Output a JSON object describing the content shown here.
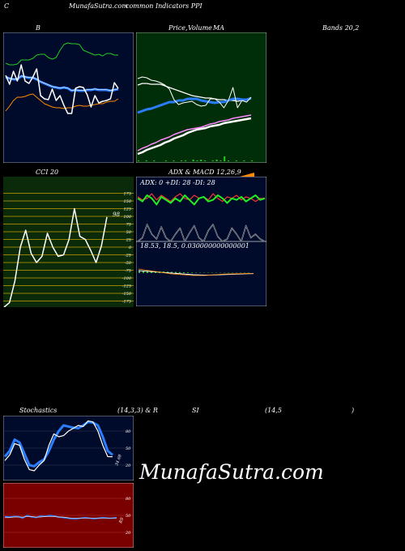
{
  "header": {
    "left_letter": "C",
    "site_title": "MunafaSutra.com",
    "subtitle": "common Indicators PPI"
  },
  "panel_titles": {
    "b": "B",
    "price": "Price,",
    "volume": "Volume",
    "ma": "MA",
    "bands": "Bands 20,2",
    "cci": "CCI 20",
    "adx_macd": "ADX & MACD 12,26,9",
    "adx_readout": "ADX: 0  +DI: 28  -DI: 28",
    "macd_readout": "18.53,  18.5,  0.030000000000001",
    "stoch_a": "Stochastics",
    "stoch_b": "(14,3,3) & R",
    "rsi_a": "SI",
    "rsi_b": "(14,5",
    "rsi_c": ")"
  },
  "cci_last_label": "98",
  "stoch_last_label": "34.68",
  "rsi_last_label": "RS",
  "watermark": "MunafaSutra.com",
  "colors": {
    "bands_bg": "#000a2a",
    "price_bg": "#002e08",
    "cci_bg": "#0a2a0a",
    "cci_grid": "#c8a000",
    "rsi_bg": "#7a0000",
    "upper_band": "#22cc22",
    "lower_band": "#ff8c00",
    "mid_band": "#2a7dff",
    "pink_ma": "#ff88ff",
    "adx_plus": "#22ee22",
    "adx_minus": "#ff3333"
  },
  "chart_data": [
    {
      "type": "line",
      "title": "B ... Bands 20,2",
      "series": [
        {
          "values": [
            78,
            80,
            80,
            79,
            74,
            74,
            74,
            72,
            68,
            67,
            67,
            71,
            73,
            71,
            62,
            55,
            53,
            54,
            54,
            55,
            62,
            64,
            66,
            68,
            67,
            69,
            66,
            66,
            68,
            68
          ]
        },
        {
          "values": [
            95,
            97,
            98,
            98,
            94,
            95,
            96,
            96,
            98,
            101,
            103,
            105,
            107,
            108,
            109,
            108,
            109,
            112,
            111,
            112,
            112,
            111,
            111,
            110,
            111,
            111,
            111,
            112,
            111,
            110
          ]
        },
        {
          "values": [
            137,
            131,
            124,
            120,
            120,
            119,
            117,
            116,
            120,
            124,
            128,
            130,
            132,
            133,
            133,
            134,
            133,
            133,
            131,
            130,
            131,
            131,
            130,
            129,
            128,
            128,
            126,
            125,
            125,
            122
          ]
        },
        {
          "values": [
            93,
            104,
            88,
            100,
            80,
            100,
            103,
            95,
            85,
            118,
            122,
            123,
            110,
            124,
            118,
            130,
            140,
            140,
            109,
            107,
            108,
            117,
            132,
            118,
            127,
            125,
            124,
            122,
            102,
            109
          ]
        }
      ]
    },
    {
      "type": "line",
      "title": "Price, Volume MA",
      "series": [
        {
          "values": [
            97,
            95,
            96,
            99,
            100,
            102,
            105,
            110,
            123,
            129,
            127,
            126,
            125,
            129,
            131,
            130,
            122,
            122,
            126,
            133,
            124,
            108,
            133,
            124,
            126,
            120
          ]
        },
        {
          "values": [
            105,
            103,
            103,
            104,
            104,
            104,
            106,
            108,
            110,
            112,
            114,
            116,
            118,
            119,
            120,
            121,
            121,
            122,
            123,
            123,
            124,
            124,
            125,
            124,
            123,
            122
          ]
        },
        {
          "values": [
            139,
            137,
            135,
            134,
            132,
            130,
            128,
            126,
            126,
            124,
            124,
            122,
            122,
            122,
            124,
            125,
            126,
            127,
            126,
            126,
            124,
            122,
            122,
            123,
            123,
            121
          ]
        },
        {
          "values": [
            186,
            183,
            181,
            178,
            176,
            173,
            171,
            169,
            166,
            164,
            162,
            160,
            159,
            158,
            157,
            155,
            153,
            152,
            150,
            149,
            148,
            146,
            145,
            144,
            143,
            142
          ]
        },
        {
          "values": [
            190,
            188,
            185,
            183,
            181,
            179,
            176,
            174,
            171,
            169,
            167,
            164,
            162,
            160,
            159,
            158,
            156,
            155,
            154,
            152,
            151,
            150,
            149,
            148,
            147,
            146
          ]
        }
      ],
      "volume": [
        1,
        0,
        1,
        0,
        1,
        0,
        0,
        1,
        0,
        1,
        0,
        1,
        1,
        0,
        2,
        1,
        2,
        1,
        0,
        1,
        2,
        1,
        6,
        1,
        0,
        1,
        0,
        1,
        0,
        1
      ]
    },
    {
      "type": "line",
      "title": "CCI 20",
      "yticks": [
        175,
        150,
        125,
        100,
        75,
        50,
        25,
        0,
        -25,
        -50,
        -75,
        -100,
        -125,
        -150,
        -175
      ],
      "ylim": [
        -200,
        200
      ],
      "series": [
        {
          "values": [
            -195,
            -180,
            -110,
            0,
            55,
            -20,
            -50,
            -30,
            45,
            0,
            -30,
            -25,
            25,
            125,
            35,
            25,
            -10,
            -50,
            5,
            98
          ]
        }
      ]
    },
    {
      "type": "line",
      "title": "ADX & MACD 12,26,9",
      "series": [
        {
          "name": "+DI",
          "values": [
            28,
            26,
            30,
            28,
            24,
            29,
            27,
            25,
            28,
            26,
            30,
            27,
            24,
            28,
            29,
            26,
            27,
            30,
            28,
            25,
            28,
            27,
            29,
            26,
            28,
            30,
            27,
            28
          ]
        },
        {
          "name": "-DI",
          "values": [
            29,
            27,
            28,
            31,
            27,
            30,
            28,
            26,
            29,
            31,
            28,
            27,
            30,
            28,
            29,
            27,
            31,
            28,
            26,
            29,
            28,
            30,
            27,
            29,
            28,
            26,
            28,
            28
          ]
        },
        {
          "name": "ADX",
          "values": [
            0,
            3,
            14,
            6,
            2,
            12,
            3,
            0,
            6,
            11,
            0,
            7,
            13,
            3,
            0,
            9,
            14,
            4,
            0,
            2,
            11,
            6,
            0,
            13,
            3,
            6,
            2,
            0
          ]
        }
      ],
      "macd": [
        18.53,
        18.5,
        0.030000000000001
      ]
    },
    {
      "type": "line",
      "title": "Stochastics (14,3,3)",
      "yticks": [
        80,
        50,
        20
      ],
      "ylim": [
        0,
        100
      ],
      "series": [
        {
          "values": [
            35,
            45,
            65,
            60,
            40,
            20,
            18,
            25,
            30,
            45,
            65,
            80,
            90,
            88,
            86,
            85,
            90,
            96,
            95,
            90,
            70,
            45,
            38
          ]
        },
        {
          "values": [
            28,
            38,
            58,
            55,
            30,
            12,
            10,
            20,
            28,
            55,
            75,
            70,
            72,
            80,
            85,
            90,
            88,
            98,
            96,
            80,
            55,
            35,
            34.68
          ]
        }
      ]
    },
    {
      "type": "line",
      "title": "RSI (14,5)",
      "yticks": [
        80,
        50,
        20
      ],
      "ylim": [
        0,
        100
      ],
      "series": [
        {
          "values": [
            48,
            47,
            48,
            48,
            45,
            50,
            47,
            46,
            49,
            48,
            50,
            49,
            47,
            46,
            45,
            44,
            44,
            45,
            46,
            45,
            44,
            45,
            46,
            45,
            45,
            46
          ]
        },
        {
          "values": [
            46,
            46,
            47,
            47,
            47,
            48,
            48,
            47,
            47,
            48,
            48,
            48,
            47,
            47,
            46,
            45,
            45,
            45,
            45,
            45,
            45,
            45,
            45,
            45,
            45,
            45
          ]
        }
      ]
    }
  ]
}
